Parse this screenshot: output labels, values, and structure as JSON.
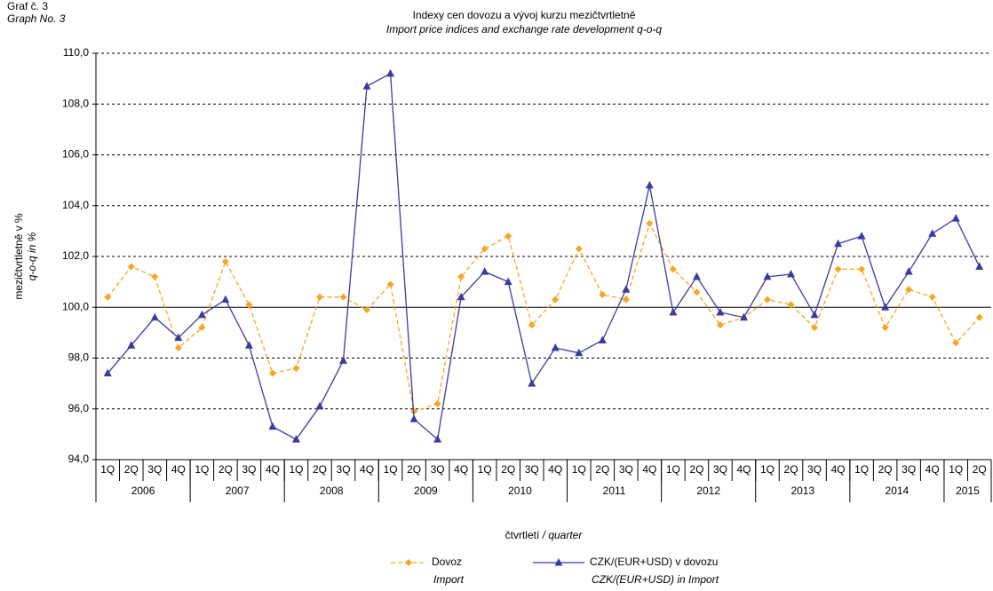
{
  "chart_data": {
    "type": "line",
    "label_cz": "Graf č. 3",
    "label_en": "Graph No. 3",
    "title": "Indexy cen dovozu a vývoj kurzu mezičtvrtletně",
    "subtitle": "Import price indices and exchange rate development q-o-q",
    "y_label": "mezičtvrtletně v %",
    "y_label_en": "q-o-q in %",
    "x_label": "čtvrtletí",
    "x_label_en": "/ quarter",
    "categories": [
      [
        "1Q",
        "2006"
      ],
      [
        "2Q",
        "2006"
      ],
      [
        "3Q",
        "2006"
      ],
      [
        "4Q",
        "2006"
      ],
      [
        "1Q",
        "2007"
      ],
      [
        "2Q",
        "2007"
      ],
      [
        "3Q",
        "2007"
      ],
      [
        "4Q",
        "2007"
      ],
      [
        "1Q",
        "2008"
      ],
      [
        "2Q",
        "2008"
      ],
      [
        "3Q",
        "2008"
      ],
      [
        "4Q",
        "2008"
      ],
      [
        "1Q",
        "2009"
      ],
      [
        "2Q",
        "2009"
      ],
      [
        "3Q",
        "2009"
      ],
      [
        "4Q",
        "2009"
      ],
      [
        "1Q",
        "2010"
      ],
      [
        "2Q",
        "2010"
      ],
      [
        "3Q",
        "2010"
      ],
      [
        "4Q",
        "2010"
      ],
      [
        "1Q",
        "2011"
      ],
      [
        "2Q",
        "2011"
      ],
      [
        "3Q",
        "2011"
      ],
      [
        "4Q",
        "2011"
      ],
      [
        "1Q",
        "2012"
      ],
      [
        "2Q",
        "2012"
      ],
      [
        "3Q",
        "2012"
      ],
      [
        "4Q",
        "2012"
      ],
      [
        "1Q",
        "2013"
      ],
      [
        "2Q",
        "2013"
      ],
      [
        "3Q",
        "2013"
      ],
      [
        "4Q",
        "2013"
      ],
      [
        "1Q",
        "2014"
      ],
      [
        "2Q",
        "2014"
      ],
      [
        "3Q",
        "2014"
      ],
      [
        "4Q",
        "2014"
      ],
      [
        "1Q",
        "2015"
      ],
      [
        "2Q",
        "2015"
      ]
    ],
    "series": [
      {
        "name": "Dovoz",
        "name_en": "Import",
        "color": "#f5a623",
        "marker": "diamond",
        "dashed": true,
        "values": [
          100.4,
          101.6,
          101.2,
          98.4,
          99.2,
          101.8,
          100.1,
          97.4,
          97.6,
          100.4,
          100.4,
          99.9,
          100.9,
          95.9,
          96.2,
          101.2,
          102.3,
          102.8,
          99.3,
          100.3,
          102.3,
          100.5,
          100.3,
          103.3,
          101.5,
          100.6,
          99.3,
          99.6,
          100.3,
          100.1,
          99.2,
          101.5,
          101.5,
          99.2,
          100.7,
          100.4,
          98.6,
          99.6
        ]
      },
      {
        "name": "CZK/(EUR+USD) v dovozu",
        "name_en": "CZK/(EUR+USD) in Import",
        "color": "#3b3b9e",
        "marker": "triangle",
        "dashed": false,
        "values": [
          97.4,
          98.5,
          99.6,
          98.8,
          99.7,
          100.3,
          98.5,
          95.3,
          94.8,
          96.1,
          97.9,
          108.7,
          109.2,
          95.6,
          94.8,
          100.4,
          101.4,
          101.0,
          97.0,
          98.4,
          98.2,
          98.7,
          100.7,
          104.8,
          99.8,
          101.2,
          99.8,
          99.6,
          101.2,
          101.3,
          99.7,
          102.5,
          102.8,
          100.0,
          101.4,
          102.9,
          103.5,
          101.6
        ]
      }
    ],
    "ylim": [
      94,
      110
    ],
    "yticks": [
      {
        "value": 94,
        "label": "94,0"
      },
      {
        "value": 96,
        "label": "96,0"
      },
      {
        "value": 98,
        "label": "98,0"
      },
      {
        "value": 100,
        "label": "100,0"
      },
      {
        "value": 102,
        "label": "102,0"
      },
      {
        "value": 104,
        "label": "104,0"
      },
      {
        "value": 106,
        "label": "106,0"
      },
      {
        "value": 108,
        "label": "108,0"
      },
      {
        "value": 110,
        "label": "110,0"
      }
    ],
    "grid": true,
    "reference_line": 100
  }
}
